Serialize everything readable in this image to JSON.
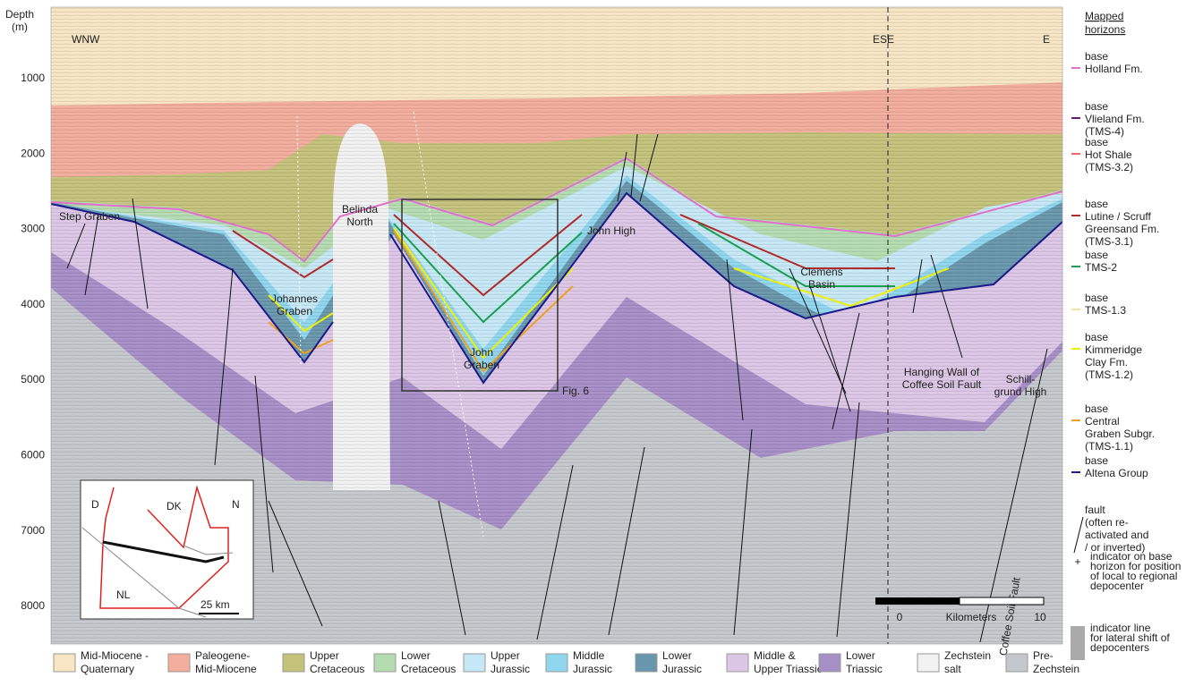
{
  "section": {
    "depth_label": [
      "Depth",
      "(m)"
    ],
    "depth_ticks": [
      "1000",
      "2000",
      "3000",
      "4000",
      "5000",
      "6000",
      "7000",
      "8000"
    ],
    "labels": [
      [
        "WNW"
      ],
      [
        "ESE"
      ],
      [
        "E"
      ],
      [
        "Step Graben"
      ],
      [
        "Johannes",
        "Graben"
      ],
      [
        "Belinda",
        "North"
      ],
      [
        "John",
        "Graben"
      ],
      [
        "John High"
      ],
      [
        "Clemens",
        "Basin"
      ],
      [
        "Hanging Wall of",
        "Coffee Soil Fault"
      ],
      [
        "Schill-",
        "grund High"
      ],
      [
        "Coffee Soil Fault"
      ],
      [
        "Fig. 6"
      ]
    ],
    "scale": {
      "start": "0",
      "unit": "Kilometers",
      "end": "10"
    },
    "inset": {
      "labels": [
        "D",
        "DK",
        "NL",
        "N"
      ],
      "scale": "25 km"
    }
  },
  "horizons": {
    "title": [
      "Mapped",
      "horizons"
    ],
    "items": [
      {
        "lines": [
          "base",
          "Holland Fm."
        ],
        "color": "#e070c8"
      },
      {
        "lines": [
          "base",
          "Vlieland Fm.",
          "(TMS-4)"
        ],
        "color": "#6a1a78"
      },
      {
        "lines": [
          "base",
          "Hot Shale",
          "(TMS-3.2)"
        ],
        "color": "#f06868"
      },
      {
        "lines": [
          "base",
          "Lutine / Scruff",
          "Greensand Fm.",
          "(TMS-3.1)"
        ],
        "color": "#b02a2a"
      },
      {
        "lines": [
          "base",
          "TMS-2"
        ],
        "color": "#18a050"
      },
      {
        "lines": [
          "base",
          "TMS-1.3"
        ],
        "color": "#f2e49a"
      },
      {
        "lines": [
          "base",
          "Kimmeridge",
          "Clay Fm.",
          "(TMS-1.2)"
        ],
        "color": "#f0f000"
      },
      {
        "lines": [
          "base",
          "Central",
          "Graben Subgr.",
          "(TMS-1.1)"
        ],
        "color": "#f0a020"
      },
      {
        "lines": [
          "base",
          "Altena Group"
        ],
        "color": "#1a1a8a"
      }
    ],
    "symbols": [
      [
        "fault",
        "(often re-",
        "activated and",
        "/ or inverted)"
      ],
      [
        "indicator on base",
        "horizon for position",
        "of local to regional",
        "depocenter"
      ],
      [
        "indicator line",
        "for lateral shift of",
        "depocenters"
      ]
    ]
  },
  "units": [
    {
      "lines": [
        "Mid-Miocene -",
        "Quaternary"
      ],
      "color": "#f7e5c3"
    },
    {
      "lines": [
        "Paleogene-",
        "Mid-Miocene"
      ],
      "color": "#f2ad9c"
    },
    {
      "lines": [
        "Upper",
        "Cretaceous"
      ],
      "color": "#c4c27a"
    },
    {
      "lines": [
        "Lower",
        "Cretaceous"
      ],
      "color": "#b4dcb0"
    },
    {
      "lines": [
        "Upper",
        "Jurassic"
      ],
      "color": "#c6e8f6"
    },
    {
      "lines": [
        "Middle",
        "Jurassic"
      ],
      "color": "#8fd6ee"
    },
    {
      "lines": [
        "Lower",
        "Jurassic"
      ],
      "color": "#6896ac"
    },
    {
      "lines": [
        "Middle &",
        "Upper Triassic"
      ],
      "color": "#dcc6e6"
    },
    {
      "lines": [
        "Lower",
        "Triassic"
      ],
      "color": "#a68ec6"
    },
    {
      "lines": [
        "Zechstein",
        "salt"
      ],
      "color": "#f2f2f2"
    },
    {
      "lines": [
        "Pre-",
        "Zechstein"
      ],
      "color": "#c4c8cc"
    }
  ]
}
